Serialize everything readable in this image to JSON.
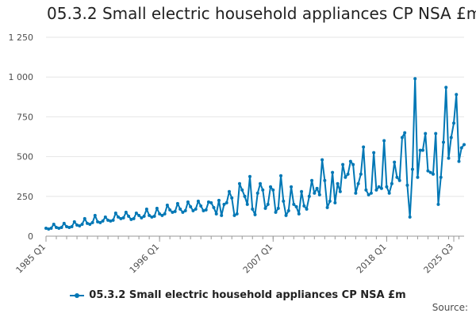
{
  "chart_data": {
    "type": "line",
    "title": "05.3.2 Small electric household appliances CP NSA £m",
    "xlabel": "",
    "ylabel": "",
    "ylim": [
      0,
      1250
    ],
    "y_ticks": [
      0,
      250,
      500,
      750,
      1000,
      1250
    ],
    "y_tick_labels": [
      "0",
      "250",
      "500",
      "750",
      "1 000",
      "1 250"
    ],
    "x_tick_labels": [
      "1985 Q1",
      "1996 Q1",
      "2007 Q1",
      "2018 Q1",
      "2025 Q3"
    ],
    "x_tick_index": [
      0,
      44,
      88,
      132,
      158
    ],
    "grid": true,
    "legend": "bottom",
    "color": "#0077b5",
    "series": [
      {
        "name": "05.3.2 Small electric household appliances CP NSA £m",
        "values": [
          50,
          45,
          50,
          75,
          55,
          50,
          55,
          80,
          60,
          55,
          60,
          90,
          70,
          65,
          75,
          110,
          80,
          75,
          85,
          130,
          90,
          85,
          95,
          120,
          100,
          95,
          100,
          145,
          120,
          110,
          115,
          150,
          125,
          105,
          110,
          145,
          130,
          115,
          125,
          170,
          130,
          120,
          125,
          175,
          140,
          130,
          140,
          195,
          165,
          150,
          155,
          205,
          170,
          150,
          160,
          215,
          185,
          160,
          170,
          220,
          190,
          160,
          165,
          215,
          210,
          180,
          140,
          225,
          130,
          200,
          210,
          280,
          240,
          130,
          140,
          330,
          290,
          250,
          200,
          375,
          170,
          135,
          270,
          330,
          290,
          175,
          200,
          310,
          290,
          150,
          175,
          380,
          220,
          130,
          160,
          310,
          200,
          185,
          140,
          280,
          190,
          170,
          250,
          350,
          270,
          300,
          260,
          480,
          350,
          180,
          220,
          400,
          210,
          330,
          280,
          450,
          370,
          390,
          470,
          450,
          270,
          330,
          390,
          560,
          290,
          260,
          270,
          525,
          290,
          310,
          300,
          600,
          310,
          270,
          330,
          465,
          370,
          350,
          620,
          650,
          320,
          120,
          420,
          990,
          370,
          540,
          540,
          645,
          410,
          400,
          390,
          645,
          200,
          370,
          590,
          935,
          490,
          620,
          710,
          890,
          470,
          555,
          575
        ]
      }
    ],
    "source_label": "Source:"
  }
}
